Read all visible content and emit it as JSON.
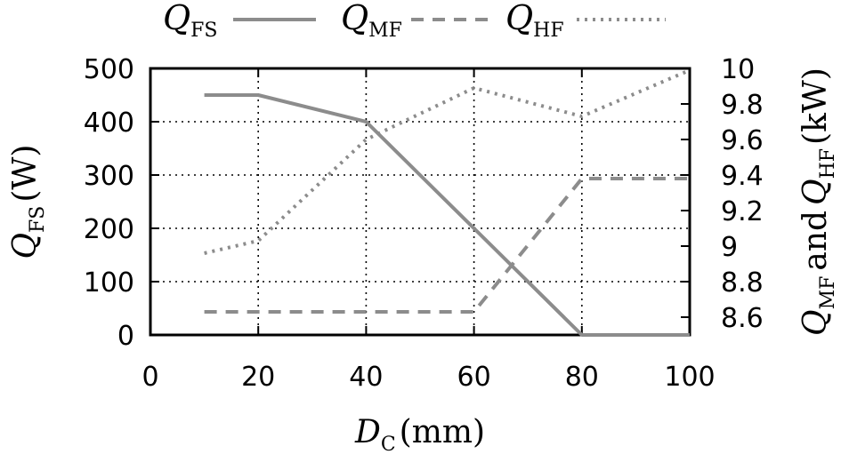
{
  "chart_data": {
    "type": "line",
    "grid": true,
    "legend_position": "top",
    "x_axis": {
      "label_symbol": "D",
      "label_sub": "C",
      "label_unit": "(mm)",
      "range": [
        0,
        100
      ],
      "ticks": [
        0,
        20,
        40,
        60,
        80,
        100
      ]
    },
    "y_left": {
      "label_symbol": "Q",
      "label_sub": "FS",
      "label_unit": "(W)",
      "range": [
        0,
        500
      ],
      "ticks": [
        0,
        100,
        200,
        300,
        400,
        500
      ]
    },
    "y_right": {
      "label_q1": "Q",
      "label_sub1": "MF",
      "label_and": "and",
      "label_q2": "Q",
      "label_sub2": "HF",
      "label_unit": "(kW)",
      "range": [
        8.5,
        10
      ],
      "ticks": [
        8.6,
        8.8,
        9,
        9.2,
        9.4,
        9.6,
        9.8,
        10
      ]
    },
    "series": [
      {
        "name_symbol": "Q",
        "name_sub": "FS",
        "axis": "left",
        "style": "solid",
        "color": "#8c8c8c",
        "points": [
          [
            10,
            450
          ],
          [
            20,
            450
          ],
          [
            40,
            400
          ],
          [
            60,
            200
          ],
          [
            80,
            0
          ],
          [
            100,
            0
          ]
        ]
      },
      {
        "name_symbol": "Q",
        "name_sub": "MF",
        "axis": "right",
        "style": "dashed",
        "color": "#8c8c8c",
        "points": [
          [
            10,
            8.63
          ],
          [
            20,
            8.63
          ],
          [
            40,
            8.63
          ],
          [
            60,
            8.63
          ],
          [
            80,
            9.38
          ],
          [
            100,
            9.38
          ]
        ]
      },
      {
        "name_symbol": "Q",
        "name_sub": "HF",
        "axis": "right",
        "style": "dotted",
        "color": "#8c8c8c",
        "points": [
          [
            10,
            8.96
          ],
          [
            20,
            9.03
          ],
          [
            40,
            9.6
          ],
          [
            60,
            9.89
          ],
          [
            80,
            9.73
          ],
          [
            100,
            9.99
          ]
        ]
      }
    ]
  }
}
